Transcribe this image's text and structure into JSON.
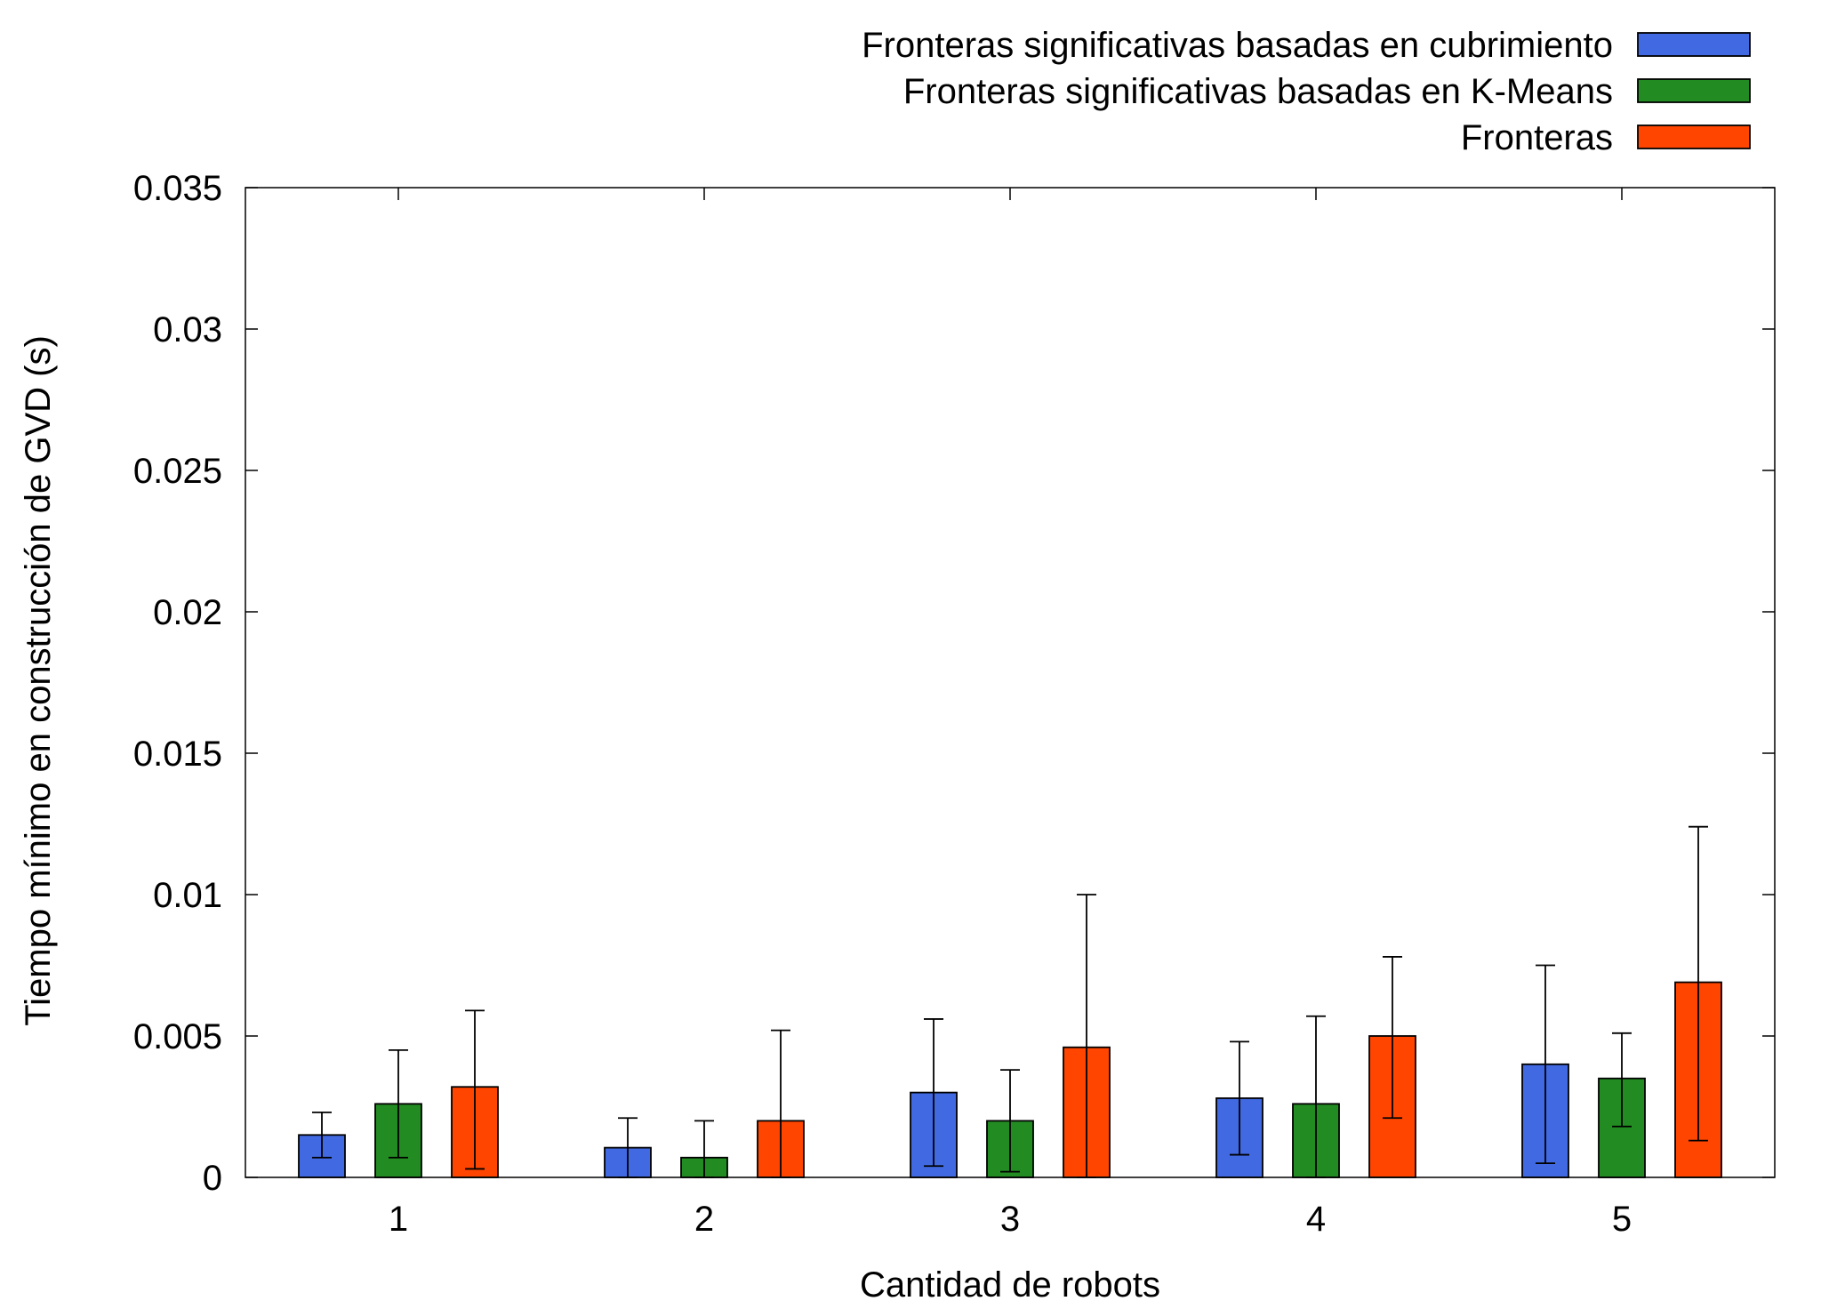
{
  "chart_data": {
    "type": "bar",
    "xlabel": "Cantidad de robots",
    "ylabel": "Tiempo mínimo en construcción de GVD (s)",
    "categories": [
      "1",
      "2",
      "3",
      "4",
      "5"
    ],
    "ylim": [
      0,
      0.035
    ],
    "yticks": [
      "0",
      "0.005",
      "0.01",
      "0.015",
      "0.02",
      "0.025",
      "0.03",
      "0.035"
    ],
    "ytick_values": [
      0,
      0.005,
      0.01,
      0.015,
      0.02,
      0.025,
      0.03,
      0.035
    ],
    "legend_position": "top-right, outside plot",
    "grid": false,
    "error_bars": true,
    "series": [
      {
        "name": "Fronteras significativas basadas en cubrimiento",
        "color": "#4169E1",
        "values": [
          0.0015,
          0.00105,
          0.003,
          0.0028,
          0.004
        ],
        "err_low": [
          0.0007,
          0.0,
          0.0004,
          0.0008,
          0.0005
        ],
        "err_high": [
          0.0023,
          0.0021,
          0.0056,
          0.0048,
          0.0075
        ]
      },
      {
        "name": "Fronteras significativas basadas en K-Means",
        "color": "#228B22",
        "values": [
          0.0026,
          0.0007,
          0.002,
          0.0026,
          0.0035
        ],
        "err_low": [
          0.0007,
          0.0,
          0.0002,
          0.0,
          0.0018
        ],
        "err_high": [
          0.0045,
          0.002,
          0.0038,
          0.0057,
          0.0051
        ]
      },
      {
        "name": "Fronteras",
        "color": "#FF4500",
        "values": [
          0.0032,
          0.002,
          0.0046,
          0.005,
          0.0069
        ],
        "err_low": [
          0.0003,
          0.0,
          0.0,
          0.0021,
          0.0013
        ],
        "err_high": [
          0.0059,
          0.0052,
          0.01,
          0.0078,
          0.0124
        ]
      }
    ]
  }
}
